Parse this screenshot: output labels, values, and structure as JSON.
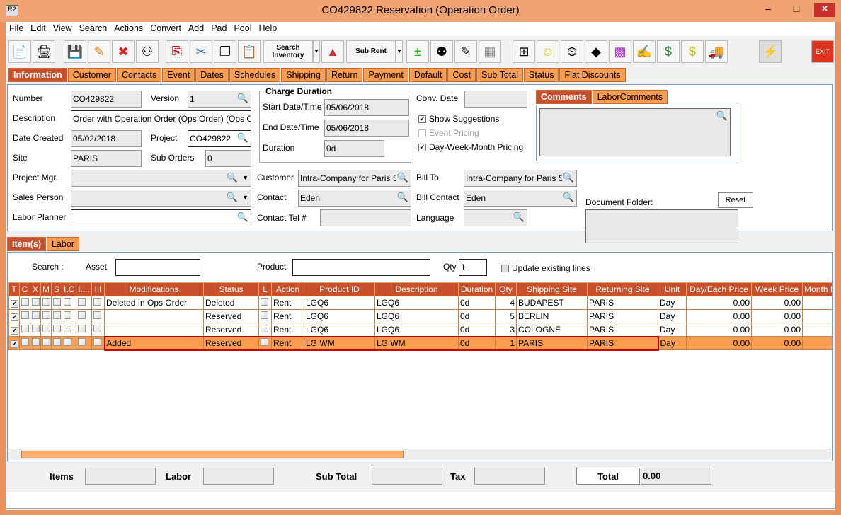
{
  "window": {
    "title": "CO429822 Reservation (Operation Order)",
    "app_icon": "R2",
    "minimize": "–",
    "maximize": "□",
    "close": "✕"
  },
  "menu": [
    "File",
    "Edit",
    "View",
    "Search",
    "Actions",
    "Convert",
    "Add",
    "Pad",
    "Pool",
    "Help"
  ],
  "toolbar": {
    "search_inventory": "Search Inventory",
    "sub_rent": "Sub Rent",
    "exit": "EXIT"
  },
  "tabs": [
    "Information",
    "Customer",
    "Contacts",
    "Event",
    "Dates",
    "Schedules",
    "Shipping",
    "Return",
    "Payment",
    "Default",
    "Cost",
    "Sub Total",
    "Status",
    "Flat Discounts"
  ],
  "info": {
    "number_label": "Number",
    "number": "CO429822",
    "version_label": "Version",
    "version": "1",
    "description_label": "Description",
    "description": "Order with Operation Order (Ops Order) (Ops C",
    "date_created_label": "Date Created",
    "date_created": "05/02/2018",
    "project_label": "Project",
    "project": "CO429822",
    "site_label": "Site",
    "site": "PARIS",
    "sub_orders_label": "Sub Orders",
    "sub_orders": "0",
    "project_mgr_label": "Project Mgr.",
    "sales_person_label": "Sales Person",
    "labor_planner_label": "Labor Planner",
    "charge_duration": "Charge Duration",
    "start_label": "Start Date/Time",
    "start": "05/06/2018",
    "end_label": "End Date/Time",
    "end": "05/06/2018",
    "duration_label": "Duration",
    "duration": "0d",
    "customer_label": "Customer",
    "customer": "Intra-Company for Paris Site",
    "contact_label": "Contact",
    "contact": "Eden",
    "contact_tel_label": "Contact Tel #",
    "conv_date_label": "Conv. Date",
    "show_suggestions": "Show Suggestions",
    "event_pricing": "Event Pricing",
    "dwm_pricing": "Day-Week-Month Pricing",
    "bill_to_label": "Bill To",
    "bill_to": "Intra-Company for Paris Site",
    "bill_contact_label": "Bill Contact",
    "bill_contact": "Eden",
    "language_label": "Language",
    "comments_tab": "Comments",
    "labor_comments_tab": "LaborComments",
    "document_folder_label": "Document Folder:",
    "reset": "Reset"
  },
  "item_tabs": [
    "Item(s)",
    "Labor"
  ],
  "search": {
    "label": "Search :",
    "asset_label": "Asset",
    "product_label": "Product",
    "qty_label": "Qty",
    "qty": "1",
    "update_existing": "Update existing lines"
  },
  "grid": {
    "columns": [
      "T",
      "C",
      "X",
      "M",
      "S",
      "I.C",
      "I....",
      "I.I",
      "Modifications",
      "Status",
      "L",
      "Action",
      "Product ID",
      "Description",
      "Duration",
      "Qty",
      "Shipping Site",
      "Returning Site",
      "Unit",
      "Day/Each Price",
      "Week Price",
      "Month P"
    ],
    "rows": [
      {
        "mod": "Deleted In Ops Order",
        "status": "Deleted",
        "action": "Rent",
        "product": "LGQ6",
        "desc": "LGQ6",
        "duration": "0d",
        "qty": "4",
        "ship": "BUDAPEST",
        "ret": "PARIS",
        "unit": "Day",
        "day": "0.00",
        "week": "0.00"
      },
      {
        "mod": "",
        "status": "Reserved",
        "action": "Rent",
        "product": "LGQ6",
        "desc": "LGQ6",
        "duration": "0d",
        "qty": "5",
        "ship": "BERLIN",
        "ret": "PARIS",
        "unit": "Day",
        "day": "0.00",
        "week": "0.00"
      },
      {
        "mod": "",
        "status": "Reserved",
        "action": "Rent",
        "product": "LGQ6",
        "desc": "LGQ6",
        "duration": "0d",
        "qty": "3",
        "ship": "COLOGNE",
        "ret": "PARIS",
        "unit": "Day",
        "day": "0.00",
        "week": "0.00"
      },
      {
        "mod": "Added",
        "status": "Reserved",
        "action": "Rent",
        "product": "LG WM",
        "desc": "LG WM",
        "duration": "0d",
        "qty": "1",
        "ship": "PARIS",
        "ret": "PARIS",
        "unit": "Day",
        "day": "0.00",
        "week": "0.00"
      }
    ]
  },
  "footer": {
    "items": "Items",
    "labor": "Labor",
    "sub_total": "Sub Total",
    "tax": "Tax",
    "total": "Total",
    "total_value": "0.00"
  }
}
